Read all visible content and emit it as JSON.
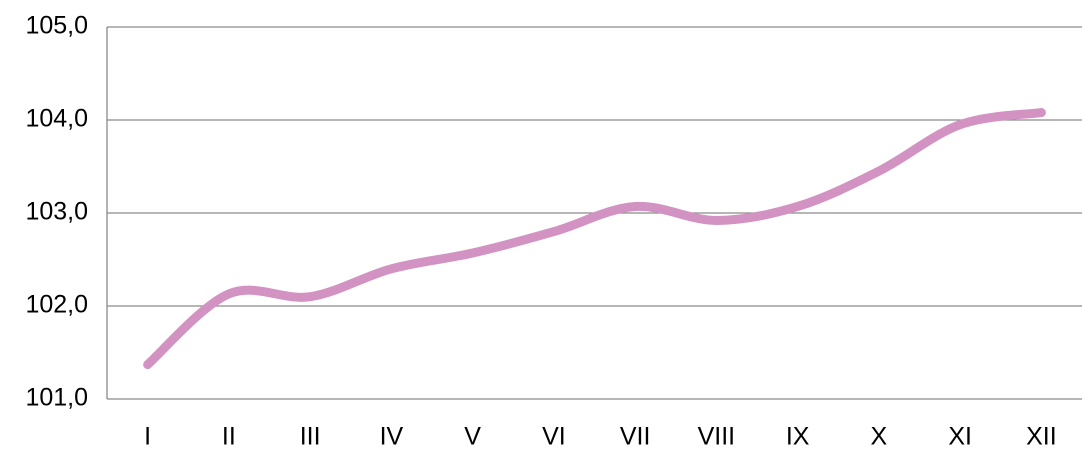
{
  "chart_data": {
    "type": "line",
    "categories": [
      "I",
      "II",
      "III",
      "IV",
      "V",
      "VI",
      "VII",
      "VIII",
      "IX",
      "X",
      "XI",
      "XII"
    ],
    "values": [
      101.37,
      102.13,
      102.1,
      102.4,
      102.57,
      102.8,
      103.07,
      102.92,
      103.07,
      103.45,
      103.95,
      104.08
    ],
    "color": "#d292c2",
    "ylim": [
      101,
      105
    ],
    "yticks": [
      {
        "value": 101,
        "label": "101,0"
      },
      {
        "value": 102,
        "label": "102,0"
      },
      {
        "value": 103,
        "label": "103,0"
      },
      {
        "value": 104,
        "label": "104,0"
      },
      {
        "value": 105,
        "label": "105,0"
      }
    ],
    "grid": true
  }
}
